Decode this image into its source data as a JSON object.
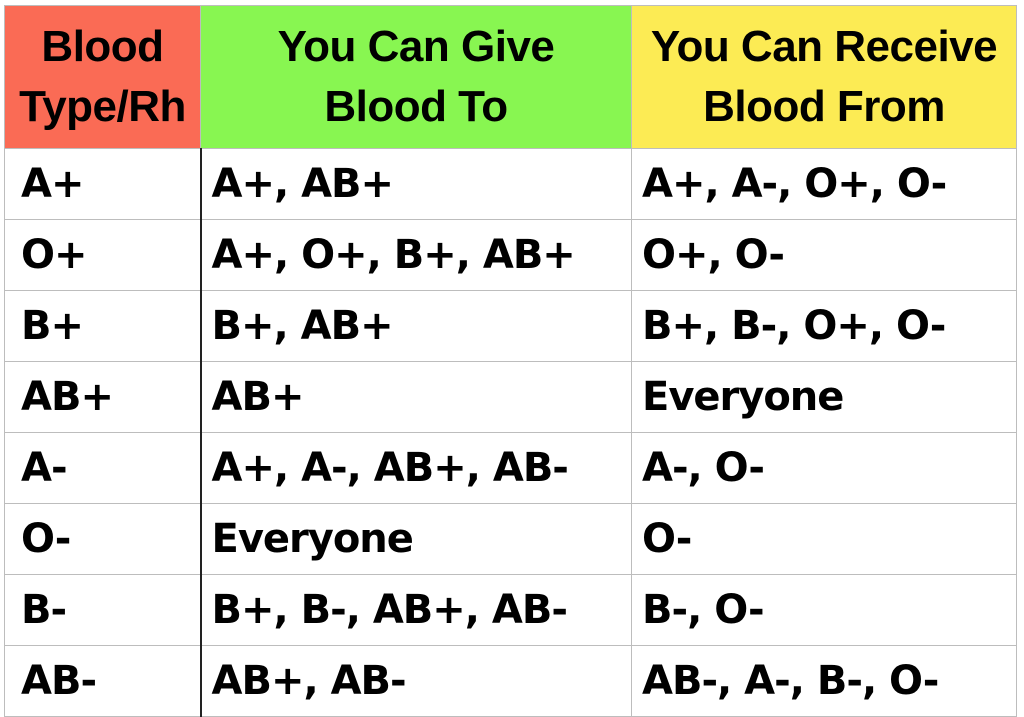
{
  "colors": {
    "header_type_bg": "#fa6b55",
    "header_give_bg": "#88f651",
    "header_receive_bg": "#fceb54",
    "grid_line": "#bdbdbd",
    "text": "#000000"
  },
  "headers": {
    "type": [
      "Blood",
      "Type/Rh"
    ],
    "give": [
      "You Can Give",
      "Blood To"
    ],
    "receive": [
      "You Can Receive",
      "Blood From"
    ]
  },
  "rows": [
    {
      "type": "A+",
      "give": "A+, AB+",
      "receive": "A+, A-, O+, O-"
    },
    {
      "type": "O+",
      "give": "A+, O+, B+, AB+",
      "receive": "O+, O-"
    },
    {
      "type": "B+",
      "give": "B+, AB+",
      "receive": "B+, B-, O+, O-"
    },
    {
      "type": "AB+",
      "give": "AB+",
      "receive": "Everyone"
    },
    {
      "type": "A-",
      "give": "A+, A-, AB+, AB-",
      "receive": "A-, O-"
    },
    {
      "type": "O-",
      "give": "Everyone",
      "receive": "O-"
    },
    {
      "type": "B-",
      "give": "B+, B-, AB+, AB-",
      "receive": "B-, O-"
    },
    {
      "type": "AB-",
      "give": "AB+, AB-",
      "receive": "AB-, A-, B-, O-"
    }
  ]
}
